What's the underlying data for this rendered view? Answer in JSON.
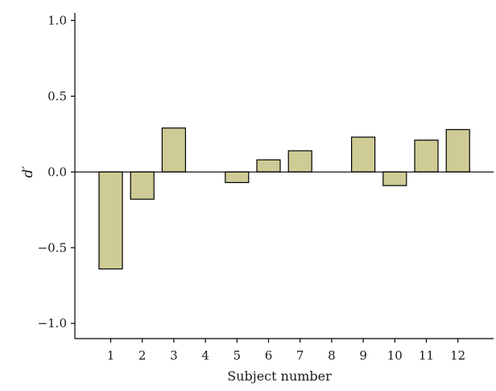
{
  "chart_data": {
    "type": "bar",
    "title": "",
    "xlabel": "Subject number",
    "ylabel": "d′",
    "categories": [
      "1",
      "2",
      "3",
      "4",
      "5",
      "6",
      "7",
      "8",
      "9",
      "10",
      "11",
      "12"
    ],
    "values": [
      -0.64,
      -0.18,
      0.29,
      0.0,
      -0.07,
      0.08,
      0.14,
      0.0,
      0.23,
      -0.09,
      0.21,
      0.28
    ],
    "ylim": [
      -1.1,
      1.05
    ],
    "yticks": [
      1.0,
      0.5,
      0.0,
      -0.5,
      -1.0
    ],
    "ytick_labels": [
      "1.0",
      "0.5",
      "0.0",
      "−0.5",
      "−1.0"
    ],
    "grid": false,
    "legend": "none",
    "bar_color": "#cfcb96",
    "bar_edge_color": "#000000"
  }
}
